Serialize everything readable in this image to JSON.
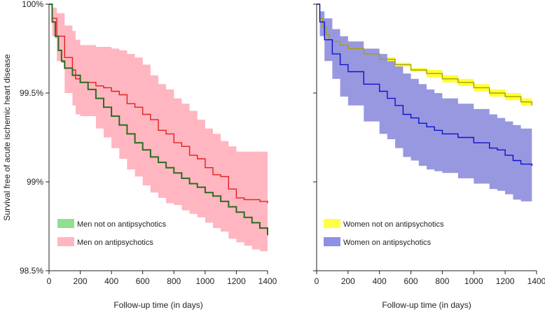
{
  "chart_data": [
    {
      "type": "line",
      "panel": "left",
      "xlabel": "Follow-up time (in days)",
      "ylabel": "Survival free of acute ischemic heart disease",
      "xlim": [
        0,
        1400
      ],
      "ylim": [
        98.5,
        100
      ],
      "xticks": [
        0,
        200,
        400,
        600,
        800,
        1000,
        1200,
        1400
      ],
      "xtick_labels": [
        "0",
        "200",
        "400",
        "600",
        "800",
        "1000",
        "1200",
        "1400"
      ],
      "yticks": [
        98.5,
        99,
        99.5,
        100
      ],
      "ytick_labels": [
        "98.5%",
        "99%",
        "99.5%",
        "100%"
      ],
      "series": [
        {
          "name": "Men not on antipsychotics",
          "line_color": "#2e6b1f",
          "band_color": "#8c9c6a",
          "legend_color": "#90e090",
          "x": [
            0,
            20,
            40,
            60,
            80,
            100,
            150,
            200,
            250,
            300,
            350,
            400,
            450,
            500,
            550,
            600,
            650,
            700,
            750,
            800,
            850,
            900,
            950,
            1000,
            1050,
            1100,
            1150,
            1200,
            1250,
            1300,
            1350,
            1400
          ],
          "y": [
            100,
            99.9,
            99.82,
            99.74,
            99.68,
            99.64,
            99.6,
            99.56,
            99.52,
            99.47,
            99.42,
            99.37,
            99.32,
            99.27,
            99.22,
            99.18,
            99.14,
            99.11,
            99.08,
            99.05,
            99.02,
            98.99,
            98.97,
            98.94,
            98.92,
            98.89,
            98.86,
            98.83,
            98.8,
            98.77,
            98.74,
            98.7
          ],
          "lower": [
            100,
            99.89,
            99.81,
            99.73,
            99.67,
            99.63,
            99.59,
            99.55,
            99.51,
            99.46,
            99.41,
            99.36,
            99.31,
            99.26,
            99.21,
            99.17,
            99.13,
            99.09,
            99.06,
            99.03,
            99.0,
            98.97,
            98.94,
            98.92,
            98.89,
            98.86,
            98.83,
            98.79,
            98.76,
            98.73,
            98.7,
            98.66
          ],
          "upper": [
            100,
            99.91,
            99.83,
            99.75,
            99.69,
            99.65,
            99.61,
            99.57,
            99.53,
            99.48,
            99.43,
            99.38,
            99.33,
            99.28,
            99.23,
            99.19,
            99.15,
            99.13,
            99.1,
            99.07,
            99.04,
            99.01,
            98.99,
            98.96,
            98.95,
            98.92,
            98.89,
            98.86,
            98.84,
            98.81,
            98.78,
            98.74
          ]
        },
        {
          "name": "Men on antipsychotics",
          "line_color": "#e02020",
          "band_color": "#ffb6c1",
          "legend_color": "#ffb6c1",
          "x": [
            0,
            20,
            50,
            100,
            150,
            170,
            200,
            300,
            350,
            400,
            450,
            500,
            550,
            600,
            650,
            700,
            750,
            800,
            850,
            900,
            950,
            1000,
            1050,
            1100,
            1150,
            1200,
            1250,
            1300,
            1350,
            1400
          ],
          "y": [
            100,
            99.92,
            99.82,
            99.7,
            99.63,
            99.58,
            99.56,
            99.54,
            99.53,
            99.51,
            99.49,
            99.44,
            99.42,
            99.38,
            99.35,
            99.29,
            99.27,
            99.22,
            99.2,
            99.15,
            99.13,
            99.08,
            99.04,
            99.03,
            98.96,
            98.91,
            98.9,
            98.9,
            98.89,
            98.88
          ],
          "lower": [
            100,
            99.82,
            99.68,
            99.5,
            99.43,
            99.38,
            99.37,
            99.3,
            99.25,
            99.19,
            99.13,
            99.07,
            99.03,
            98.98,
            98.94,
            98.91,
            98.88,
            98.87,
            98.84,
            98.82,
            98.8,
            98.77,
            98.74,
            98.72,
            98.68,
            98.66,
            98.64,
            98.62,
            98.61,
            98.6
          ],
          "upper": [
            100,
            99.98,
            99.95,
            99.88,
            99.85,
            99.8,
            99.77,
            99.76,
            99.76,
            99.75,
            99.74,
            99.72,
            99.7,
            99.66,
            99.6,
            99.55,
            99.52,
            99.47,
            99.44,
            99.4,
            99.35,
            99.3,
            99.27,
            99.23,
            99.2,
            99.17,
            99.17,
            99.17,
            99.17,
            99.17
          ]
        }
      ]
    },
    {
      "type": "line",
      "panel": "right",
      "xlabel": "Follow-up time (in days)",
      "xlim": [
        0,
        1400
      ],
      "ylim": [
        98.5,
        100
      ],
      "xticks": [
        0,
        200,
        400,
        600,
        800,
        1000,
        1200,
        1400
      ],
      "xtick_labels": [
        "0",
        "200",
        "400",
        "600",
        "800",
        "1000",
        "1200",
        "1400"
      ],
      "yticks": [
        98.5,
        99,
        99.5,
        100
      ],
      "series": [
        {
          "name": "Women not on antipsychotics",
          "line_color": "#a8a000",
          "band_color": "#ffff33",
          "legend_color": "#ffff44",
          "x": [
            0,
            20,
            40,
            60,
            80,
            100,
            150,
            200,
            300,
            400,
            500,
            600,
            700,
            800,
            900,
            1000,
            1100,
            1200,
            1300,
            1370
          ],
          "y": [
            100,
            99.92,
            99.87,
            99.83,
            99.8,
            99.79,
            99.77,
            99.75,
            99.72,
            99.69,
            99.66,
            99.63,
            99.61,
            99.58,
            99.56,
            99.53,
            99.5,
            99.48,
            99.45,
            99.43
          ],
          "lower": [
            100,
            99.91,
            99.86,
            99.82,
            99.79,
            99.78,
            99.76,
            99.74,
            99.71,
            99.68,
            99.65,
            99.62,
            99.59,
            99.56,
            99.54,
            99.51,
            99.48,
            99.46,
            99.43,
            99.41
          ],
          "upper": [
            100,
            99.93,
            99.88,
            99.84,
            99.81,
            99.8,
            99.78,
            99.76,
            99.73,
            99.7,
            99.67,
            99.64,
            99.63,
            99.6,
            99.58,
            99.55,
            99.52,
            99.5,
            99.47,
            99.45
          ]
        },
        {
          "name": "Women on antipsychotics",
          "line_color": "#1010d0",
          "band_color": "#9898e0",
          "legend_color": "#8f8fe6",
          "x": [
            0,
            20,
            50,
            100,
            150,
            200,
            300,
            400,
            450,
            500,
            550,
            600,
            650,
            700,
            750,
            800,
            900,
            1000,
            1100,
            1150,
            1200,
            1250,
            1300,
            1370
          ],
          "y": [
            100,
            99.9,
            99.8,
            99.72,
            99.66,
            99.62,
            99.55,
            99.51,
            99.47,
            99.43,
            99.38,
            99.36,
            99.33,
            99.31,
            99.29,
            99.27,
            99.25,
            99.22,
            99.19,
            99.18,
            99.15,
            99.12,
            99.1,
            99.09
          ],
          "lower": [
            100,
            99.82,
            99.68,
            99.58,
            99.48,
            99.43,
            99.34,
            99.27,
            99.24,
            99.19,
            99.14,
            99.12,
            99.09,
            99.07,
            99.06,
            99.05,
            99.02,
            98.99,
            98.96,
            98.95,
            98.93,
            98.9,
            98.89,
            98.88
          ],
          "upper": [
            100,
            99.96,
            99.92,
            99.86,
            99.82,
            99.79,
            99.75,
            99.72,
            99.68,
            99.65,
            99.61,
            99.58,
            99.55,
            99.52,
            99.5,
            99.47,
            99.44,
            99.41,
            99.38,
            99.36,
            99.34,
            99.32,
            99.3,
            99.3
          ]
        }
      ]
    }
  ]
}
